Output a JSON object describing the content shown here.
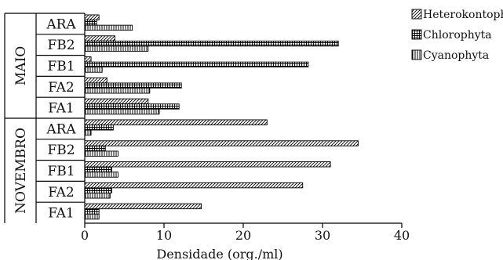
{
  "chart_data": {
    "type": "bar",
    "orientation": "horizontal",
    "xlabel": "Densidade (org./ml)",
    "ylabel": "",
    "xlim": [
      0,
      40
    ],
    "xticks": [
      0,
      10,
      20,
      30,
      40
    ],
    "grid": false,
    "legend_position": "top-right",
    "groups": [
      {
        "name": "MAIO",
        "sites": [
          "ARA",
          "FB2",
          "FB1",
          "FA2",
          "FA1"
        ]
      },
      {
        "name": "NOVEMBRO",
        "sites": [
          "ARA",
          "FB2",
          "FB1",
          "FA2",
          "FA1"
        ]
      }
    ],
    "series": [
      {
        "name": "Heterokontophyta",
        "pattern": "diagonal",
        "values": [
          1.8,
          3.8,
          0.8,
          2.8,
          8.0,
          23.0,
          34.5,
          31.0,
          27.5,
          14.7
        ]
      },
      {
        "name": "Chlorophyta",
        "pattern": "grid",
        "values": [
          1.5,
          32.0,
          28.2,
          12.2,
          11.9,
          3.6,
          2.6,
          3.4,
          3.4,
          1.8
        ]
      },
      {
        "name": "Cyanophyta",
        "pattern": "vertical",
        "values": [
          6.0,
          8.0,
          2.2,
          8.2,
          9.4,
          0.8,
          4.2,
          4.2,
          3.2,
          1.8
        ]
      }
    ]
  }
}
